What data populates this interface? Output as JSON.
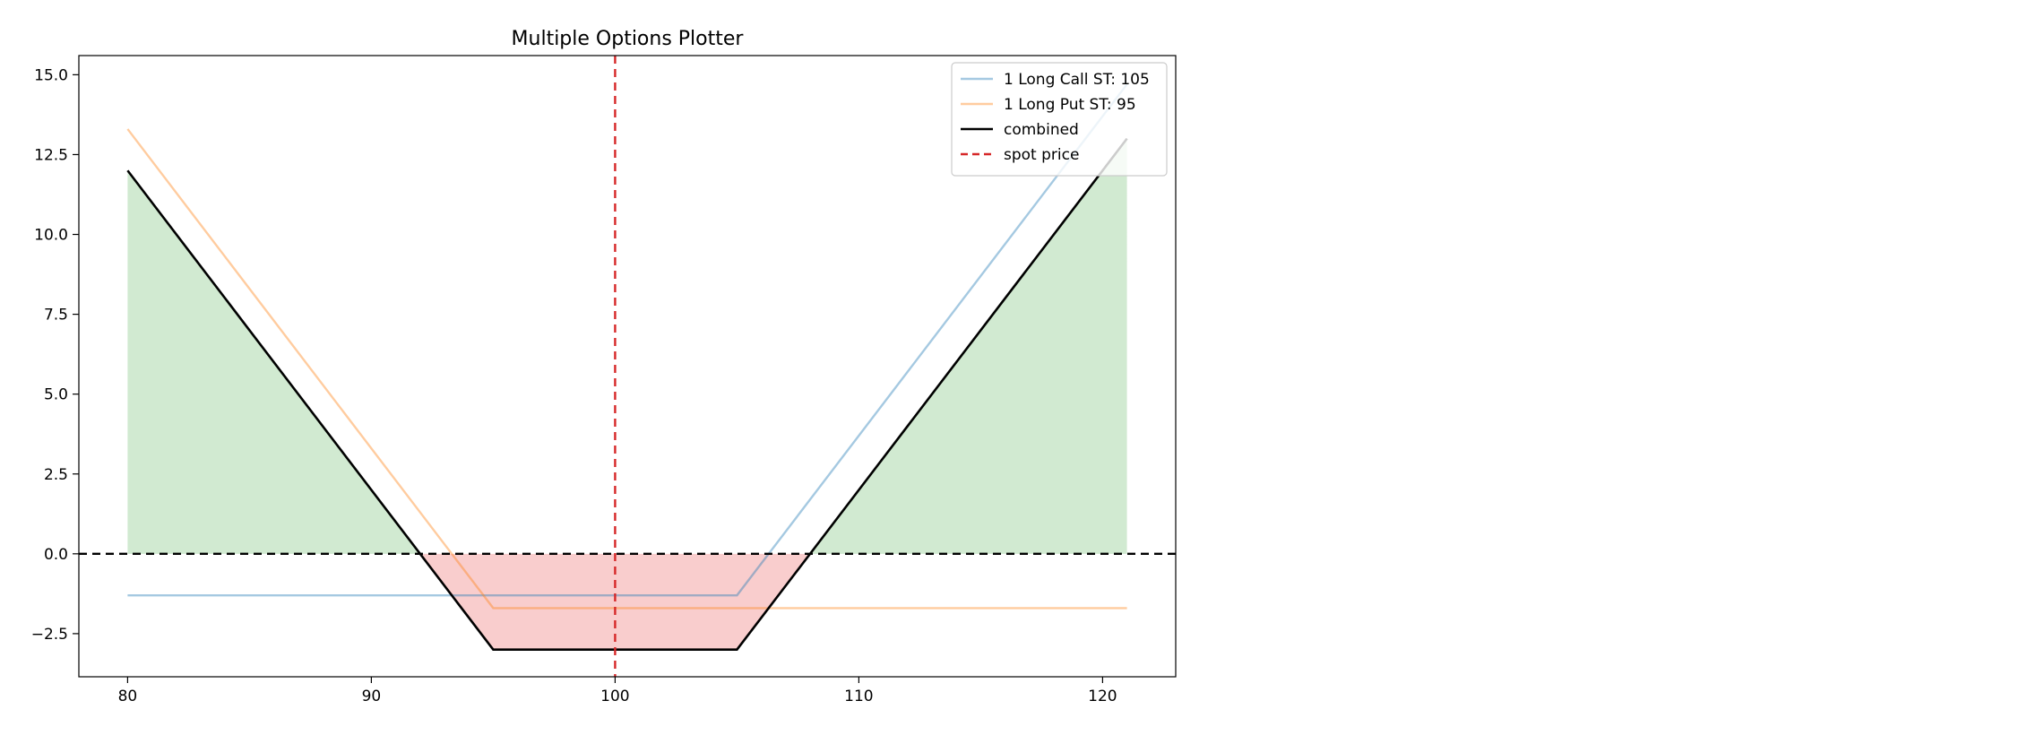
{
  "chart_data": {
    "type": "line",
    "title": "Multiple Options Plotter",
    "xlabel": "",
    "ylabel": "",
    "xlim": [
      78,
      123
    ],
    "ylim": [
      -3.85,
      15.6
    ],
    "xticks": [
      80,
      90,
      100,
      110,
      120
    ],
    "xtick_labels": [
      "80",
      "90",
      "100",
      "110",
      "120"
    ],
    "yticks": [
      -2.5,
      0.0,
      2.5,
      5.0,
      7.5,
      10.0,
      12.5,
      15.0
    ],
    "ytick_labels": [
      "−2.5",
      "0.0",
      "2.5",
      "5.0",
      "7.5",
      "10.0",
      "12.5",
      "15.0"
    ],
    "grid": false,
    "legend_position": "top-right",
    "spot_price": 100,
    "zero_line": 0,
    "series": [
      {
        "name": "1 Long Call ST: 105",
        "color": "#1f77b4",
        "opacity": 0.4,
        "dash": "solid",
        "x": [
          80,
          105,
          121
        ],
        "y": [
          -1.3,
          -1.3,
          14.7
        ]
      },
      {
        "name": "1 Long Put ST: 95",
        "color": "#ff7f0e",
        "opacity": 0.4,
        "dash": "solid",
        "x": [
          80,
          95,
          121
        ],
        "y": [
          13.3,
          -1.7,
          -1.7
        ]
      },
      {
        "name": "combined",
        "color": "#000000",
        "opacity": 1,
        "dash": "solid",
        "x": [
          80,
          95,
          105,
          121
        ],
        "y": [
          12.0,
          -3.0,
          -3.0,
          13.0
        ]
      }
    ],
    "spot_series": {
      "name": "spot price",
      "color": "#d62728",
      "dash": "dashed"
    },
    "fill": {
      "profit_color": "#2ca02c",
      "loss_color": "#e41a1c",
      "profit_opacity": 0.22,
      "loss_opacity": 0.22,
      "x_range": [
        80,
        121
      ]
    }
  }
}
